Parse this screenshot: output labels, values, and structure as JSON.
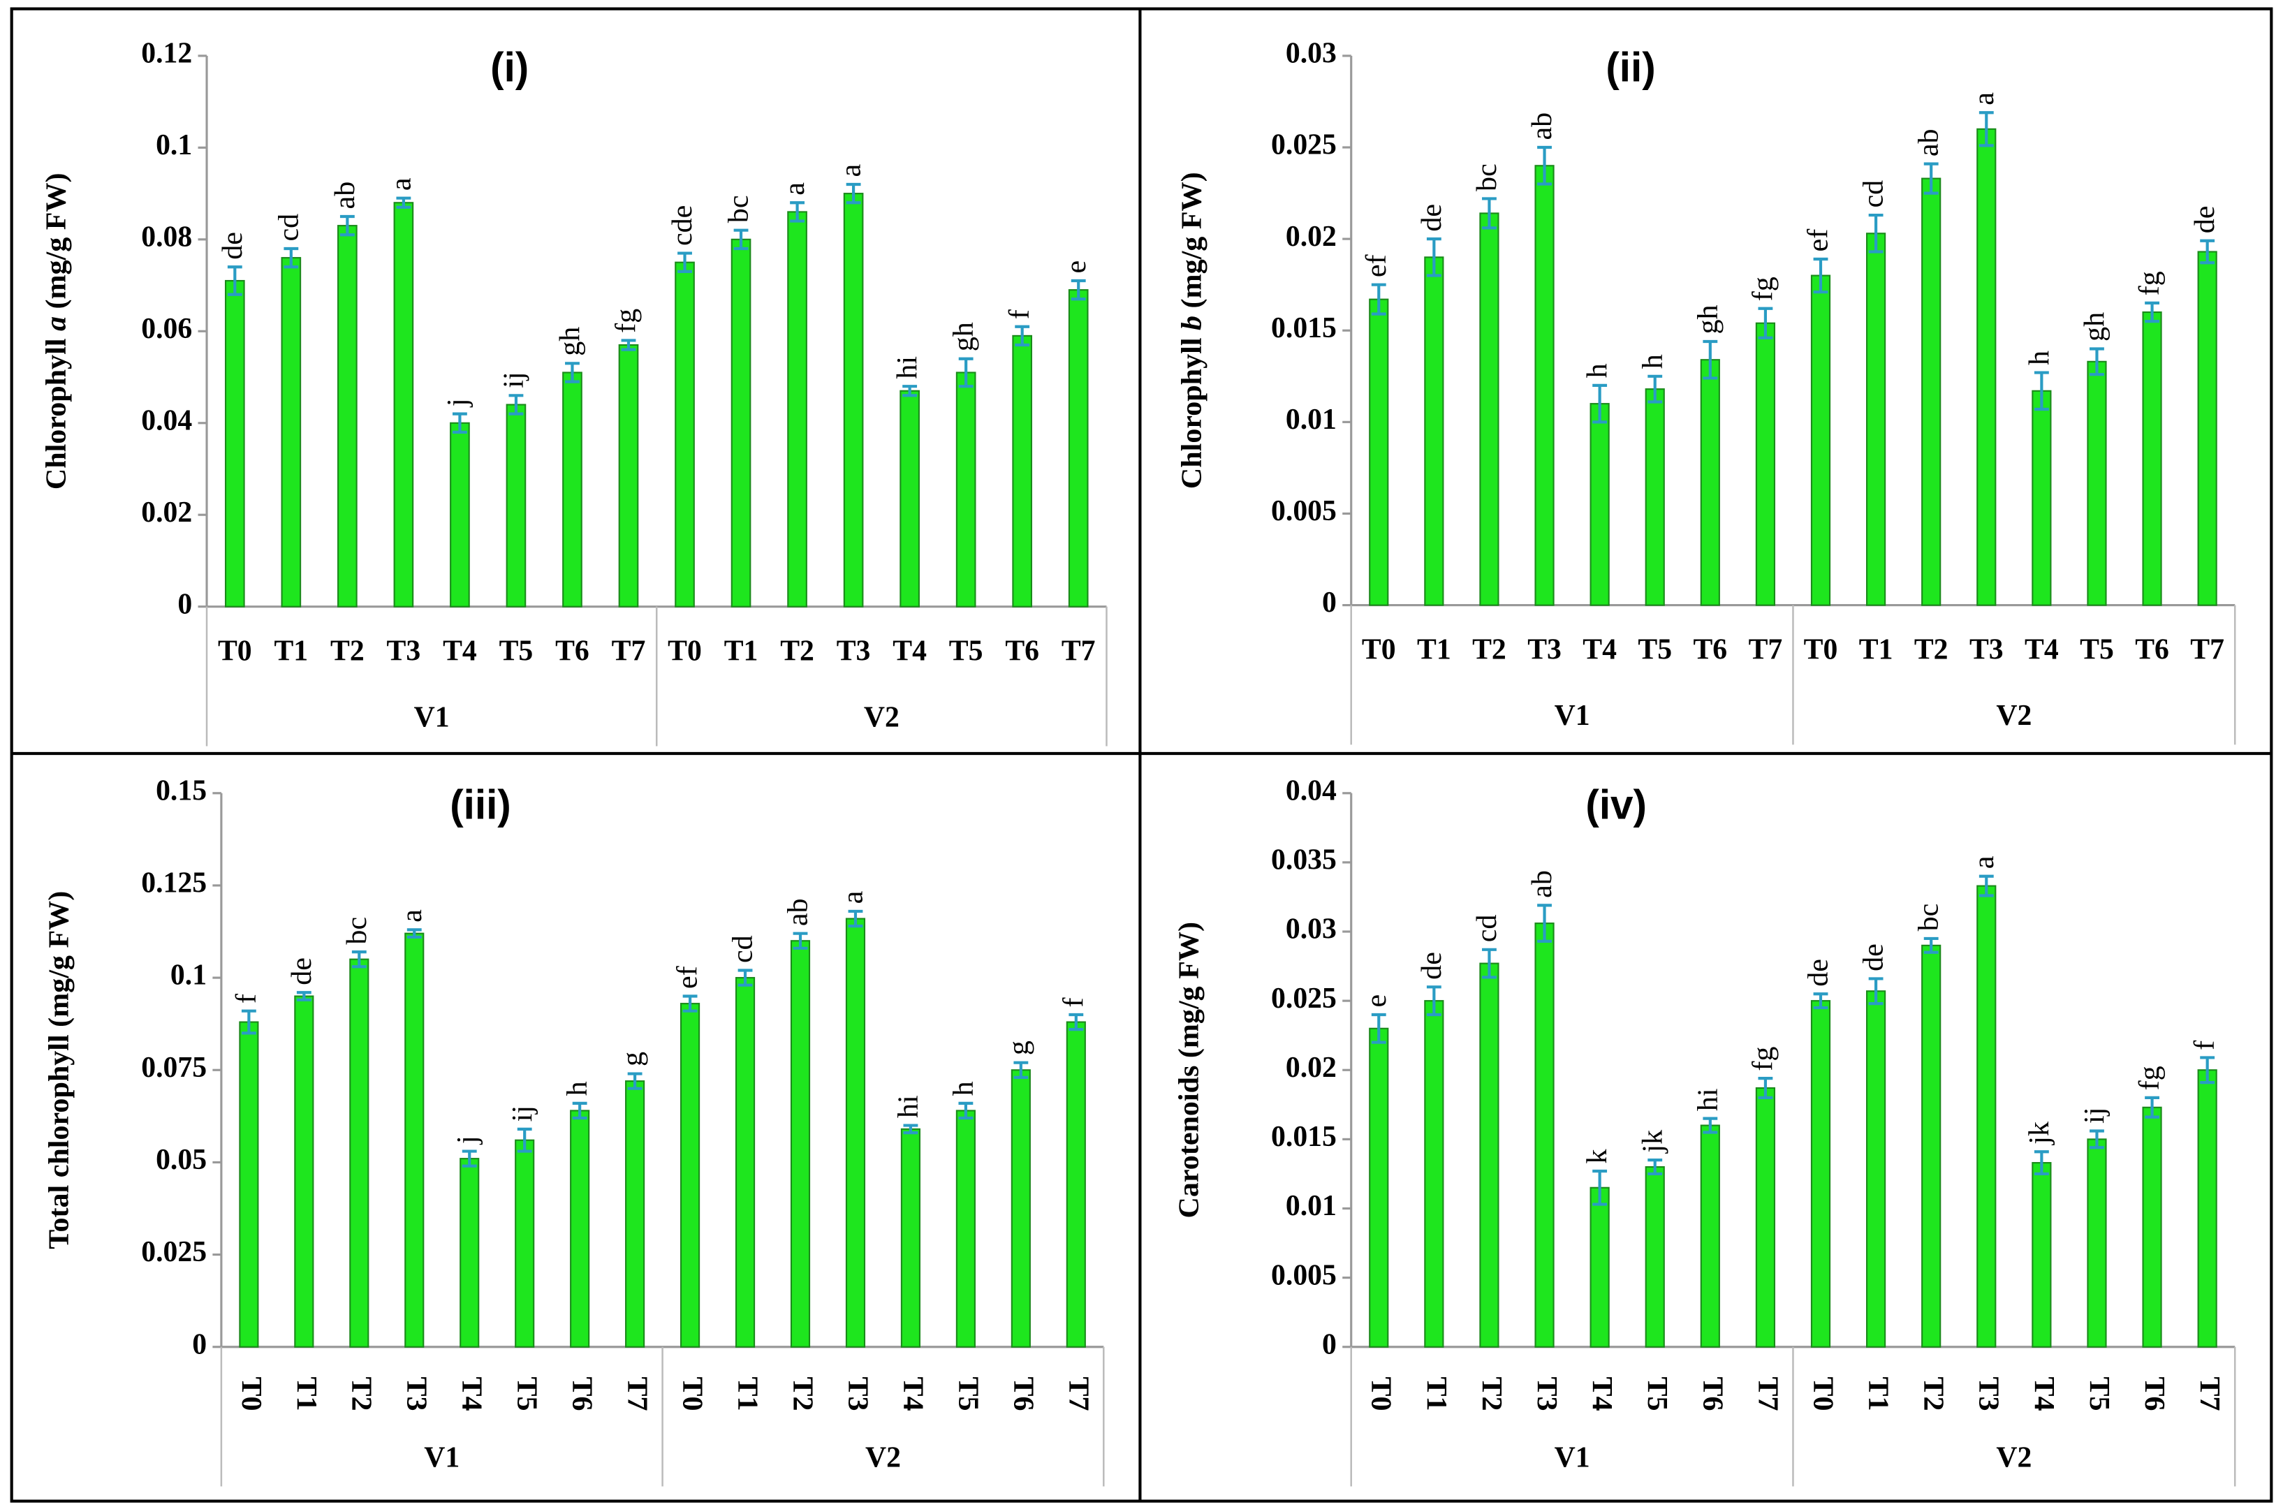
{
  "chart_data": [
    {
      "type": "bar",
      "title": "(i)",
      "ylabel_parts": [
        {
          "text": "Chlorophyll "
        },
        {
          "text": "a",
          "italic": true
        },
        {
          "text": " (mg/g FW)"
        }
      ],
      "categories": [
        "T0",
        "T1",
        "T2",
        "T3",
        "T4",
        "T5",
        "T6",
        "T7",
        "T0",
        "T1",
        "T2",
        "T3",
        "T4",
        "T5",
        "T6",
        "T7"
      ],
      "groups": [
        "V1",
        "V2"
      ],
      "values": [
        0.071,
        0.076,
        0.083,
        0.088,
        0.04,
        0.044,
        0.051,
        0.057,
        0.075,
        0.08,
        0.086,
        0.09,
        0.047,
        0.051,
        0.059,
        0.069
      ],
      "errors": [
        0.003,
        0.002,
        0.002,
        0.001,
        0.002,
        0.002,
        0.002,
        0.001,
        0.002,
        0.002,
        0.002,
        0.002,
        0.001,
        0.003,
        0.002,
        0.002
      ],
      "letters": [
        "de",
        "cd",
        "ab",
        "a",
        "j",
        "ij",
        "gh",
        "fg",
        "cde",
        "bc",
        "a",
        "a",
        "hi",
        "gh",
        "f",
        "e"
      ],
      "color": "#1ee61e",
      "error_color": "#2a9cc4",
      "ylim": [
        0,
        0.12
      ],
      "yticks": [
        0,
        0.02,
        0.04,
        0.06,
        0.08,
        0.1,
        0.12
      ]
    },
    {
      "type": "bar",
      "title": "(ii)",
      "ylabel_parts": [
        {
          "text": "Chlorophyll "
        },
        {
          "text": "b",
          "italic": true
        },
        {
          "text": " (mg/g FW)"
        }
      ],
      "categories": [
        "T0",
        "T1",
        "T2",
        "T3",
        "T4",
        "T5",
        "T6",
        "T7",
        "T0",
        "T1",
        "T2",
        "T3",
        "T4",
        "T5",
        "T6",
        "T7"
      ],
      "groups": [
        "V1",
        "V2"
      ],
      "values": [
        0.0167,
        0.019,
        0.0214,
        0.024,
        0.011,
        0.0118,
        0.0134,
        0.0154,
        0.018,
        0.0203,
        0.0233,
        0.026,
        0.0117,
        0.0133,
        0.016,
        0.0193
      ],
      "errors": [
        0.0008,
        0.001,
        0.0008,
        0.001,
        0.001,
        0.0007,
        0.001,
        0.0008,
        0.0009,
        0.001,
        0.0008,
        0.0009,
        0.001,
        0.0007,
        0.0005,
        0.0006
      ],
      "letters": [
        "ef",
        "de",
        "bc",
        "ab",
        "h",
        "h",
        "gh",
        "fg",
        "ef",
        "cd",
        "ab",
        "a",
        "h",
        "gh",
        "fg",
        "de"
      ],
      "color": "#1ee61e",
      "error_color": "#2a9cc4",
      "ylim": [
        0,
        0.03
      ],
      "yticks": [
        0,
        0.005,
        0.01,
        0.015,
        0.02,
        0.025,
        0.03
      ]
    },
    {
      "type": "bar",
      "title": "(iii)",
      "ylabel_parts": [
        {
          "text": "Total chlorophyll (mg/g FW)"
        }
      ],
      "categories": [
        "T0",
        "T1",
        "T2",
        "T3",
        "T4",
        "T5",
        "T6",
        "T7",
        "T0",
        "T1",
        "T2",
        "T3",
        "T4",
        "T5",
        "T6",
        "T7"
      ],
      "groups": [
        "V1",
        "V2"
      ],
      "values": [
        0.088,
        0.095,
        0.105,
        0.112,
        0.051,
        0.056,
        0.064,
        0.072,
        0.093,
        0.1,
        0.11,
        0.116,
        0.059,
        0.064,
        0.075,
        0.088
      ],
      "errors": [
        0.003,
        0.001,
        0.002,
        0.001,
        0.002,
        0.003,
        0.002,
        0.002,
        0.002,
        0.002,
        0.002,
        0.002,
        0.001,
        0.002,
        0.002,
        0.002
      ],
      "letters": [
        "f",
        "de",
        "bc",
        "a",
        "j",
        "ij",
        "h",
        "g",
        "ef",
        "cd",
        "ab",
        "a",
        "hi",
        "h",
        "g",
        "f"
      ],
      "color": "#1ee61e",
      "error_color": "#2a9cc4",
      "ylim": [
        0,
        0.15
      ],
      "yticks": [
        0,
        0.025,
        0.05,
        0.075,
        0.1,
        0.125,
        0.15
      ]
    },
    {
      "type": "bar",
      "title": "(iv)",
      "ylabel_parts": [
        {
          "text": "Carotenoids (mg/g FW)"
        }
      ],
      "categories": [
        "T0",
        "T1",
        "T2",
        "T3",
        "T4",
        "T5",
        "T6",
        "T7",
        "T0",
        "T1",
        "T2",
        "T3",
        "T4",
        "T5",
        "T6",
        "T7"
      ],
      "groups": [
        "V1",
        "V2"
      ],
      "values": [
        0.023,
        0.025,
        0.0277,
        0.0306,
        0.0115,
        0.013,
        0.016,
        0.0187,
        0.025,
        0.0257,
        0.029,
        0.0333,
        0.0133,
        0.015,
        0.0173,
        0.02
      ],
      "errors": [
        0.001,
        0.001,
        0.001,
        0.0013,
        0.0012,
        0.0005,
        0.0005,
        0.0007,
        0.0005,
        0.0009,
        0.0005,
        0.0007,
        0.0008,
        0.0006,
        0.0007,
        0.0009
      ],
      "letters": [
        "e",
        "de",
        "cd",
        "ab",
        "k",
        "jk",
        "hi",
        "fg",
        "de",
        "de",
        "bc",
        "a",
        "jk",
        "ij",
        "fg",
        "f"
      ],
      "color": "#1ee61e",
      "error_color": "#2a9cc4",
      "ylim": [
        0,
        0.04
      ],
      "yticks": [
        0,
        0.005,
        0.01,
        0.015,
        0.02,
        0.025,
        0.03,
        0.035,
        0.04
      ]
    }
  ]
}
